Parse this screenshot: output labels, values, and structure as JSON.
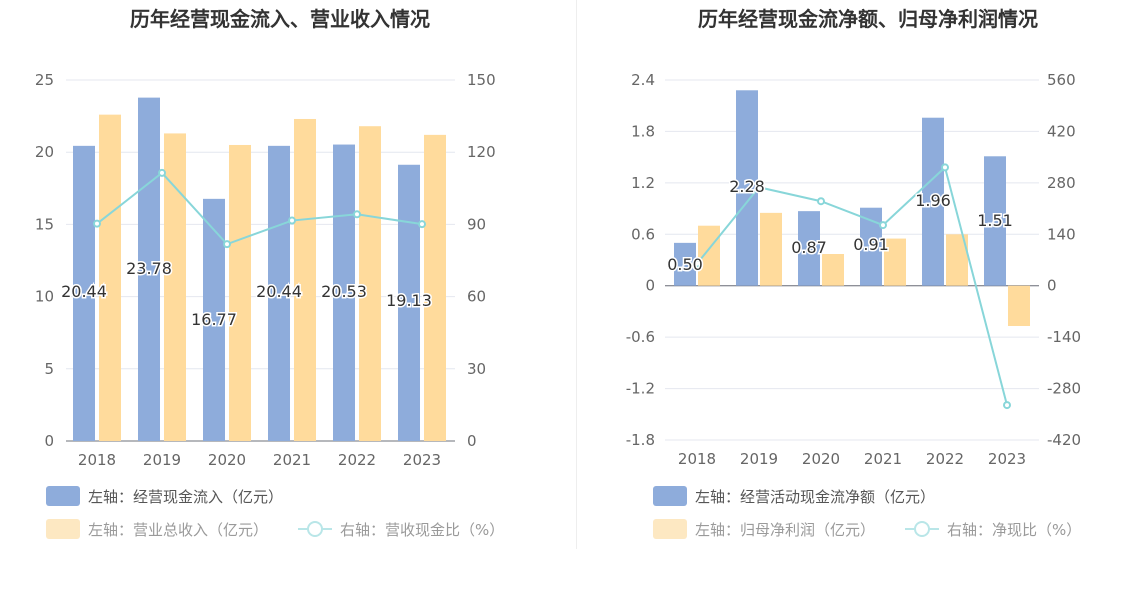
{
  "chart_data": [
    {
      "type": "bar",
      "title": "历年经营现金流入、营业收入情况",
      "categories": [
        "2018",
        "2019",
        "2020",
        "2021",
        "2022",
        "2023"
      ],
      "y_left": {
        "ticks": [
          0,
          5,
          10,
          15,
          20,
          25
        ],
        "range": [
          0,
          25
        ]
      },
      "y_right": {
        "ticks": [
          0,
          30,
          60,
          90,
          120,
          150
        ],
        "range": [
          0,
          150
        ]
      },
      "grid": true,
      "legend_position": "bottom-left",
      "series": [
        {
          "name": "左轴：经营现金流入（亿元）",
          "kind": "bar",
          "axis": "left",
          "color": "#8eacdb",
          "values": [
            20.44,
            23.78,
            16.77,
            20.44,
            20.53,
            19.13
          ],
          "data_labels": [
            "20.44",
            "23.78",
            "16.77",
            "20.44",
            "20.53",
            "19.13"
          ]
        },
        {
          "name": "左轴：营业总收入（亿元）",
          "kind": "bar",
          "axis": "left",
          "color": "#ffdb9c",
          "values": [
            22.6,
            21.3,
            20.5,
            22.3,
            21.8,
            21.2
          ]
        },
        {
          "name": "右轴：营收现金比（%）",
          "kind": "line",
          "axis": "right",
          "color": "#88d6d9",
          "values": [
            90.3,
            111.4,
            81.8,
            91.6,
            94.2,
            90.1
          ]
        }
      ]
    },
    {
      "type": "bar",
      "title": "历年经营现金流净额、归母净利润情况",
      "categories": [
        "2018",
        "2019",
        "2020",
        "2021",
        "2022",
        "2023"
      ],
      "y_left": {
        "ticks": [
          -1.8,
          -1.2,
          -0.6,
          0,
          0.6,
          1.2,
          1.8,
          2.4
        ],
        "range": [
          -1.8,
          2.4
        ]
      },
      "y_right": {
        "ticks": [
          -420,
          -280,
          -140,
          0,
          140,
          280,
          420,
          560
        ],
        "range": [
          -420,
          560
        ]
      },
      "grid": true,
      "legend_position": "bottom-left",
      "series": [
        {
          "name": "左轴：经营活动现金流净额（亿元）",
          "kind": "bar",
          "axis": "left",
          "color": "#8eacdb",
          "values": [
            0.5,
            2.28,
            0.87,
            0.91,
            1.96,
            1.51
          ],
          "data_labels": [
            "0.50",
            "2.28",
            "0.87",
            "0.91",
            "1.96",
            "1.51"
          ]
        },
        {
          "name": "左轴：归母净利润（亿元）",
          "kind": "bar",
          "axis": "left",
          "color": "#ffdb9c",
          "values": [
            0.7,
            0.85,
            0.37,
            0.55,
            0.6,
            -0.47
          ]
        },
        {
          "name": "右轴：净现比（%）",
          "kind": "line",
          "axis": "right",
          "color": "#88d6d9",
          "values": [
            60,
            268,
            230,
            165,
            322,
            -325
          ]
        }
      ]
    }
  ]
}
